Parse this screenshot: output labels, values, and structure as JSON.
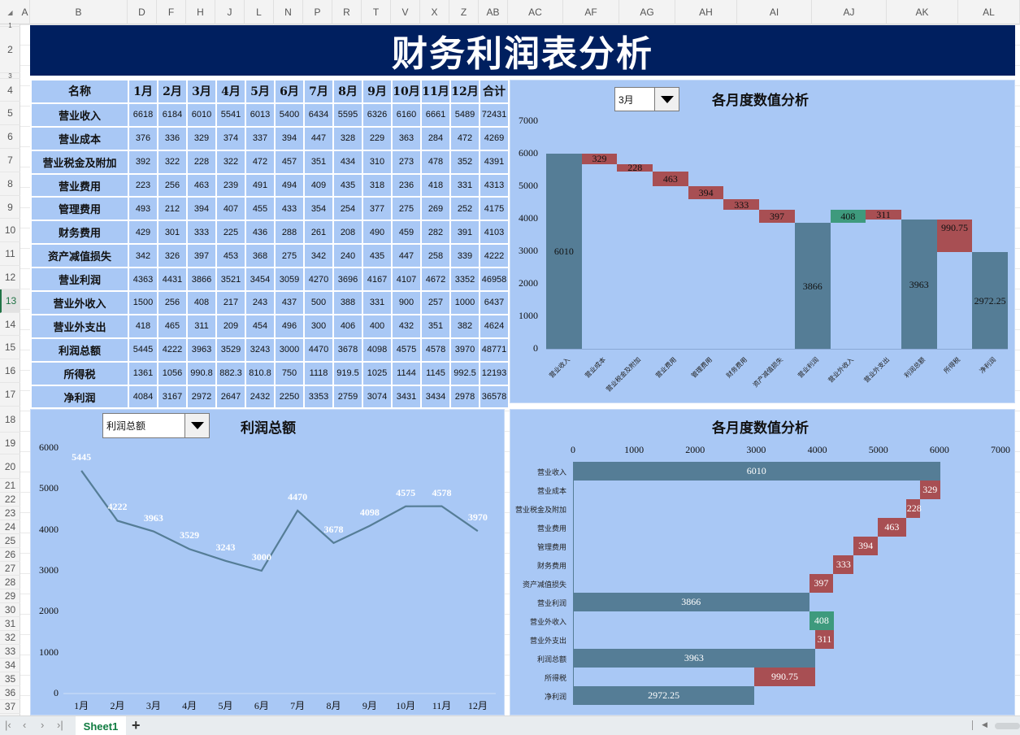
{
  "title": "财务利润表分析",
  "columns": [
    {
      "label": "A",
      "x": 25,
      "w": 12
    },
    {
      "label": "B",
      "x": 37,
      "w": 120
    },
    {
      "label": "D",
      "x": 157,
      "w": 36
    },
    {
      "label": "F",
      "x": 193,
      "w": 36
    },
    {
      "label": "H",
      "x": 229,
      "w": 36
    },
    {
      "label": "J",
      "x": 265,
      "w": 36
    },
    {
      "label": "L",
      "x": 301,
      "w": 36
    },
    {
      "label": "N",
      "x": 337,
      "w": 36
    },
    {
      "label": "P",
      "x": 373,
      "w": 36
    },
    {
      "label": "R",
      "x": 409,
      "w": 36
    },
    {
      "label": "T",
      "x": 445,
      "w": 36
    },
    {
      "label": "V",
      "x": 481,
      "w": 36
    },
    {
      "label": "X",
      "x": 517,
      "w": 36
    },
    {
      "label": "Z",
      "x": 553,
      "w": 36
    },
    {
      "label": "AB",
      "x": 589,
      "w": 36
    },
    {
      "label": "AC",
      "x": 625,
      "w": 68
    },
    {
      "label": "AF",
      "x": 693,
      "w": 69
    },
    {
      "label": "AG",
      "x": 762,
      "w": 69
    },
    {
      "label": "AH",
      "x": 831,
      "w": 76
    },
    {
      "label": "AI",
      "x": 907,
      "w": 92
    },
    {
      "label": "AJ",
      "x": 999,
      "w": 92
    },
    {
      "label": "AK",
      "x": 1091,
      "w": 88
    },
    {
      "label": "AL",
      "x": 1179,
      "w": 76
    }
  ],
  "rows": [
    {
      "label": "1",
      "y": 30,
      "h": 3
    },
    {
      "label": "2",
      "y": 33,
      "h": 57
    },
    {
      "label": "3",
      "y": 90,
      "h": 7
    },
    {
      "label": "4",
      "y": 97,
      "h": 28
    },
    {
      "label": "5",
      "y": 125,
      "h": 29
    },
    {
      "label": "6",
      "y": 154,
      "h": 29
    },
    {
      "label": "7",
      "y": 183,
      "h": 29
    },
    {
      "label": "8",
      "y": 212,
      "h": 29
    },
    {
      "label": "9",
      "y": 241,
      "h": 28
    },
    {
      "label": "10",
      "y": 269,
      "h": 29
    },
    {
      "label": "11",
      "y": 298,
      "h": 29
    },
    {
      "label": "12",
      "y": 327,
      "h": 29
    },
    {
      "label": "13",
      "y": 356,
      "h": 29,
      "active": true
    },
    {
      "label": "14",
      "y": 385,
      "h": 28
    },
    {
      "label": "15",
      "y": 413,
      "h": 29
    },
    {
      "label": "16",
      "y": 442,
      "h": 29
    },
    {
      "label": "17",
      "y": 471,
      "h": 29
    },
    {
      "label": "18",
      "y": 500,
      "h": 32
    },
    {
      "label": "19",
      "y": 532,
      "h": 27
    },
    {
      "label": "20",
      "y": 559,
      "h": 30
    },
    {
      "label": "21",
      "y": 589,
      "h": 17
    },
    {
      "label": "22",
      "y": 606,
      "h": 17
    },
    {
      "label": "23",
      "y": 623,
      "h": 17
    },
    {
      "label": "24",
      "y": 640,
      "h": 17
    },
    {
      "label": "25",
      "y": 657,
      "h": 17
    },
    {
      "label": "26",
      "y": 674,
      "h": 17
    },
    {
      "label": "27",
      "y": 691,
      "h": 17
    },
    {
      "label": "28",
      "y": 708,
      "h": 17
    },
    {
      "label": "29",
      "y": 725,
      "h": 17
    },
    {
      "label": "30",
      "y": 742,
      "h": 17
    },
    {
      "label": "31",
      "y": 759,
      "h": 17
    },
    {
      "label": "32",
      "y": 776,
      "h": 17
    },
    {
      "label": "33",
      "y": 793,
      "h": 17
    },
    {
      "label": "34",
      "y": 810,
      "h": 17
    },
    {
      "label": "35",
      "y": 827,
      "h": 17
    },
    {
      "label": "36",
      "y": 844,
      "h": 17
    },
    {
      "label": "37",
      "y": 861,
      "h": 17
    }
  ],
  "table": {
    "headers": [
      "名称",
      "1月",
      "2月",
      "3月",
      "4月",
      "5月",
      "6月",
      "7月",
      "8月",
      "9月",
      "10月",
      "11月",
      "12月",
      "合计"
    ],
    "rows": [
      {
        "name": "营业收入",
        "values": [
          "6618",
          "6184",
          "6010",
          "5541",
          "6013",
          "5400",
          "6434",
          "5595",
          "6326",
          "6160",
          "6661",
          "5489",
          "72431"
        ]
      },
      {
        "name": "营业成本",
        "values": [
          "376",
          "336",
          "329",
          "374",
          "337",
          "394",
          "447",
          "328",
          "229",
          "363",
          "284",
          "472",
          "4269"
        ]
      },
      {
        "name": "营业税金及附加",
        "values": [
          "392",
          "322",
          "228",
          "322",
          "472",
          "457",
          "351",
          "434",
          "310",
          "273",
          "478",
          "352",
          "4391"
        ]
      },
      {
        "name": "营业费用",
        "values": [
          "223",
          "256",
          "463",
          "239",
          "491",
          "494",
          "409",
          "435",
          "318",
          "236",
          "418",
          "331",
          "4313"
        ]
      },
      {
        "name": "管理费用",
        "values": [
          "493",
          "212",
          "394",
          "407",
          "455",
          "433",
          "354",
          "254",
          "377",
          "275",
          "269",
          "252",
          "4175"
        ]
      },
      {
        "name": "财务费用",
        "values": [
          "429",
          "301",
          "333",
          "225",
          "436",
          "288",
          "261",
          "208",
          "490",
          "459",
          "282",
          "391",
          "4103"
        ]
      },
      {
        "name": "资产减值损失",
        "values": [
          "342",
          "326",
          "397",
          "453",
          "368",
          "275",
          "342",
          "240",
          "435",
          "447",
          "258",
          "339",
          "4222"
        ]
      },
      {
        "name": "营业利润",
        "values": [
          "4363",
          "4431",
          "3866",
          "3521",
          "3454",
          "3059",
          "4270",
          "3696",
          "4167",
          "4107",
          "4672",
          "3352",
          "46958"
        ]
      },
      {
        "name": "营业外收入",
        "values": [
          "1500",
          "256",
          "408",
          "217",
          "243",
          "437",
          "500",
          "388",
          "331",
          "900",
          "257",
          "1000",
          "6437"
        ]
      },
      {
        "name": "营业外支出",
        "values": [
          "418",
          "465",
          "311",
          "209",
          "454",
          "496",
          "300",
          "406",
          "400",
          "432",
          "351",
          "382",
          "4624"
        ]
      },
      {
        "name": "利润总额",
        "values": [
          "5445",
          "4222",
          "3963",
          "3529",
          "3243",
          "3000",
          "4470",
          "3678",
          "4098",
          "4575",
          "4578",
          "3970",
          "48771"
        ]
      },
      {
        "name": "所得税",
        "values": [
          "1361",
          "1056",
          "990.8",
          "882.3",
          "810.8",
          "750",
          "1118",
          "919.5",
          "1025",
          "1144",
          "1145",
          "992.5",
          "12193"
        ]
      },
      {
        "name": "净利润",
        "values": [
          "4084",
          "3167",
          "2972",
          "2647",
          "2432",
          "2250",
          "3353",
          "2759",
          "3074",
          "3431",
          "3434",
          "2978",
          "36578"
        ]
      }
    ]
  },
  "colors": {
    "banner": "#001f5f",
    "panel": "#a9c8f5",
    "total_bar": "#557d96",
    "decrease_bar": "#a84f53",
    "increase_bar": "#3e9a7d",
    "line": "#557d96"
  },
  "dropdowns": {
    "month": {
      "value": "3月"
    },
    "metric": {
      "value": "利润总额"
    }
  },
  "sheet_tabs": {
    "active": "Sheet1",
    "add": "+"
  },
  "chart_data": [
    {
      "type": "bar",
      "subtype": "waterfall",
      "title": "各月度数值分析",
      "orientation": "vertical",
      "selected_month": "3月",
      "categories": [
        "营业收入",
        "营业成本",
        "营业税金及附加",
        "营业费用",
        "管理费用",
        "财务费用",
        "资产减值损失",
        "营业利润",
        "营业外收入",
        "营业外支出",
        "利润总额",
        "所得税",
        "净利润"
      ],
      "values": [
        6010,
        329,
        228,
        463,
        394,
        333,
        397,
        3866,
        408,
        311,
        3963,
        990.75,
        2972.25
      ],
      "labels": [
        "6010",
        "329",
        "228",
        "463",
        "394",
        "333",
        "397",
        "3866",
        "408",
        "311",
        "3963",
        "990.75",
        "2972.25"
      ],
      "bases": [
        0,
        5681,
        5453,
        4990,
        4596,
        4263,
        3866,
        0,
        3866,
        3963,
        0,
        2972.25,
        0
      ],
      "kinds": [
        "total",
        "decrease",
        "decrease",
        "decrease",
        "decrease",
        "decrease",
        "decrease",
        "total",
        "increase",
        "decrease",
        "total",
        "decrease",
        "total"
      ],
      "yticks": [
        "0",
        "1000",
        "2000",
        "3000",
        "4000",
        "5000",
        "6000",
        "7000"
      ],
      "ylim": [
        0,
        7000
      ],
      "grid": false,
      "legend": "none"
    },
    {
      "type": "line",
      "title": "利润总额",
      "categories": [
        "1月",
        "2月",
        "3月",
        "4月",
        "5月",
        "6月",
        "7月",
        "8月",
        "9月",
        "10月",
        "11月",
        "12月"
      ],
      "values": [
        5445,
        4222,
        3963,
        3529,
        3243,
        3000,
        4470,
        3678,
        4098,
        4575,
        4578,
        3970
      ],
      "labels": [
        "5445",
        "4222",
        "3963",
        "3529",
        "3243",
        "3000",
        "4470",
        "3678",
        "4098",
        "4575",
        "4578",
        "3970"
      ],
      "yticks": [
        "0",
        "1000",
        "2000",
        "3000",
        "4000",
        "5000",
        "6000"
      ],
      "ylim": [
        0,
        6000
      ],
      "grid": false,
      "legend": "none"
    },
    {
      "type": "bar",
      "subtype": "waterfall",
      "title": "各月度数值分析",
      "orientation": "horizontal",
      "categories": [
        "营业收入",
        "营业成本",
        "营业税金及附加",
        "营业费用",
        "管理费用",
        "财务费用",
        "资产减值损失",
        "营业利润",
        "营业外收入",
        "营业外支出",
        "利润总额",
        "所得税",
        "净利润"
      ],
      "values": [
        6010,
        329,
        228,
        463,
        394,
        333,
        397,
        3866,
        408,
        311,
        3963,
        990.75,
        2972.25
      ],
      "labels": [
        "6010",
        "329",
        "228",
        "463",
        "394",
        "333",
        "397",
        "3866",
        "408",
        "311",
        "3963",
        "990.75",
        "2972.25"
      ],
      "bases": [
        0,
        5681,
        5453,
        4990,
        4596,
        4263,
        3866,
        0,
        3866,
        3963,
        0,
        2972.25,
        0
      ],
      "kinds": [
        "total",
        "decrease",
        "decrease",
        "decrease",
        "decrease",
        "decrease",
        "decrease",
        "total",
        "increase",
        "decrease",
        "total",
        "decrease",
        "total"
      ],
      "xticks": [
        "0",
        "1000",
        "2000",
        "3000",
        "4000",
        "5000",
        "6000",
        "7000"
      ],
      "xlim": [
        0,
        7000
      ],
      "grid": false,
      "legend": "none"
    }
  ]
}
